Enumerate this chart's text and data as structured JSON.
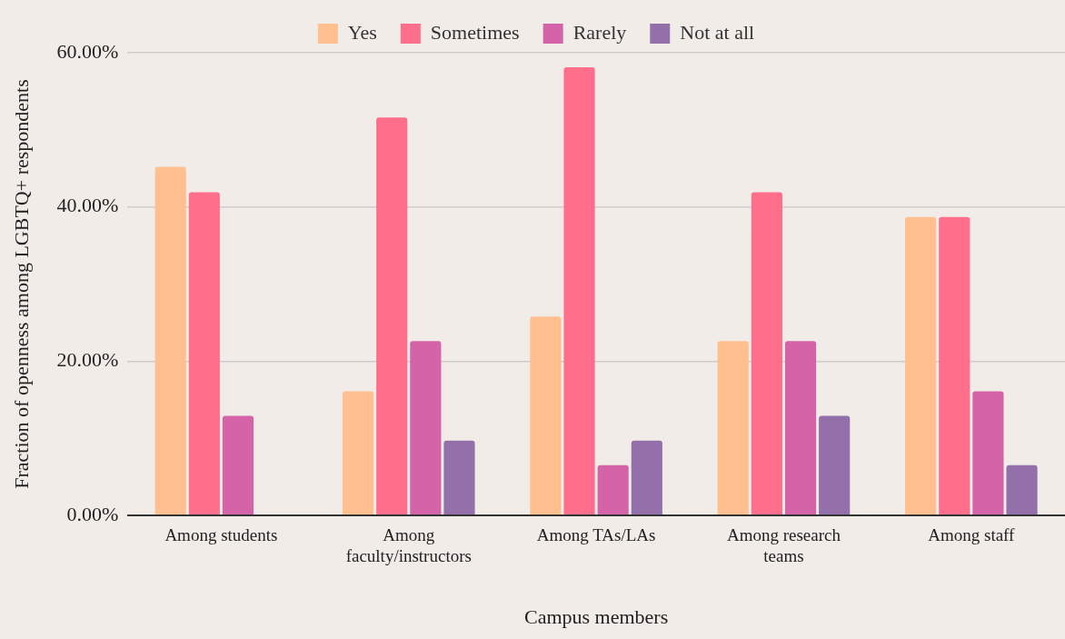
{
  "chart_data": {
    "type": "bar",
    "xlabel": "Campus members",
    "ylabel": "Fraction of openness among LGBTQ+ respondents",
    "categories": [
      "Among students",
      "Among faculty/instructors",
      "Among TAs/LAs",
      "Among research teams",
      "Among staff"
    ],
    "series": [
      {
        "name": "Yes",
        "color": "#ffbf8e",
        "values": [
          45.2,
          16.1,
          25.8,
          22.6,
          38.7
        ]
      },
      {
        "name": "Sometimes",
        "color": "#ff6f8b",
        "values": [
          41.9,
          51.6,
          58.1,
          41.9,
          38.7
        ]
      },
      {
        "name": "Rarely",
        "color": "#d563a7",
        "values": [
          12.9,
          22.6,
          6.5,
          22.6,
          16.1
        ]
      },
      {
        "name": "Not at all",
        "color": "#9470aa",
        "values": [
          0,
          9.7,
          9.7,
          12.9,
          6.5
        ]
      }
    ],
    "ylim": [
      0,
      60
    ],
    "yticks": [
      {
        "value": 0,
        "label": "0.00%"
      },
      {
        "value": 20,
        "label": "20.00%"
      },
      {
        "value": 40,
        "label": "40.00%"
      },
      {
        "value": 60,
        "label": "60.00%"
      }
    ],
    "grid": "y",
    "legend": "top"
  }
}
